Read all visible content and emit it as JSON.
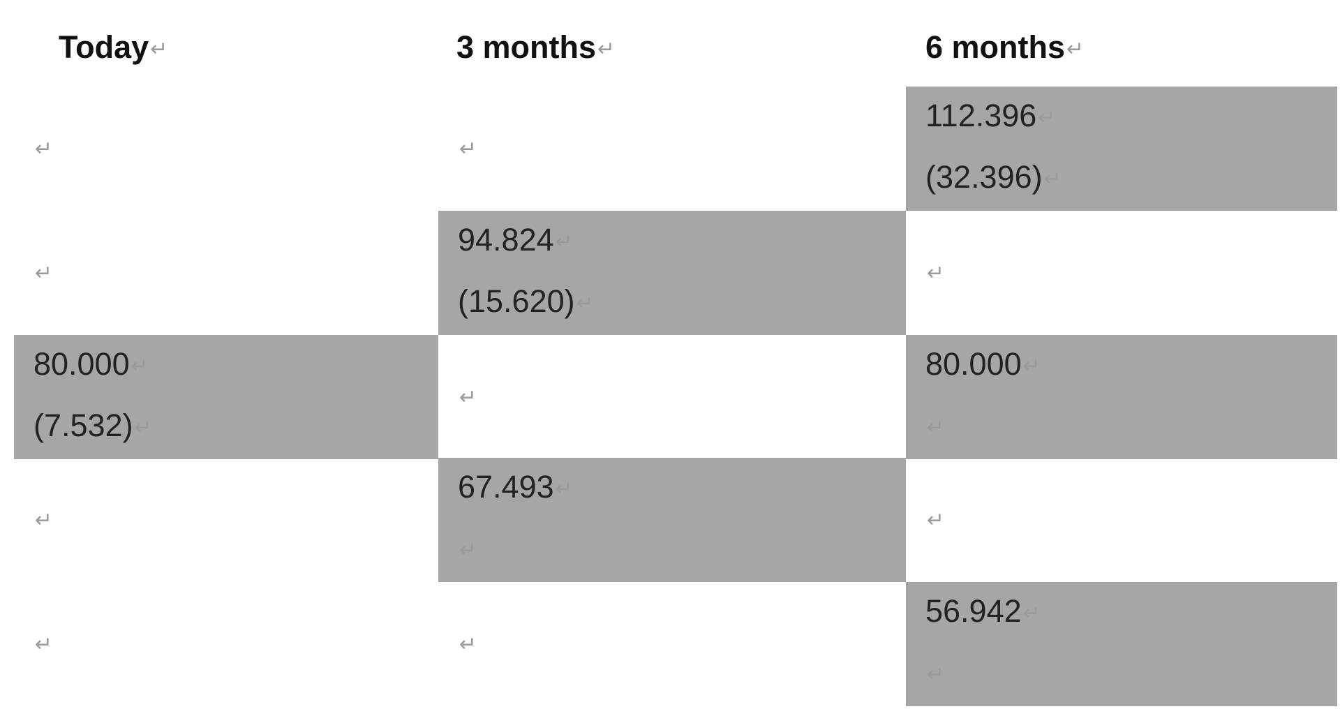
{
  "table": {
    "headers": [
      "Today",
      "3 months",
      "6 months"
    ],
    "paragraph_mark": "↵",
    "rows": [
      [
        {
          "shaded": false,
          "value": "",
          "sub": ""
        },
        {
          "shaded": false,
          "value": "",
          "sub": ""
        },
        {
          "shaded": true,
          "value": "112.396",
          "sub": "(32.396)"
        }
      ],
      [
        {
          "shaded": false,
          "value": "",
          "sub": ""
        },
        {
          "shaded": true,
          "value": "94.824",
          "sub": "(15.620)"
        },
        {
          "shaded": false,
          "value": "",
          "sub": ""
        }
      ],
      [
        {
          "shaded": true,
          "value": "80.000",
          "sub": "(7.532)"
        },
        {
          "shaded": false,
          "value": "",
          "sub": ""
        },
        {
          "shaded": true,
          "value": "80.000",
          "sub": ""
        }
      ],
      [
        {
          "shaded": false,
          "value": "",
          "sub": ""
        },
        {
          "shaded": true,
          "value": "67.493",
          "sub": ""
        },
        {
          "shaded": false,
          "value": "",
          "sub": ""
        }
      ],
      [
        {
          "shaded": false,
          "value": "",
          "sub": ""
        },
        {
          "shaded": false,
          "value": "",
          "sub": ""
        },
        {
          "shaded": true,
          "value": "56.942",
          "sub": ""
        }
      ]
    ]
  },
  "colors": {
    "shade": "#a6a6a6",
    "text": "#222222",
    "mark": "#9a9a9a"
  }
}
